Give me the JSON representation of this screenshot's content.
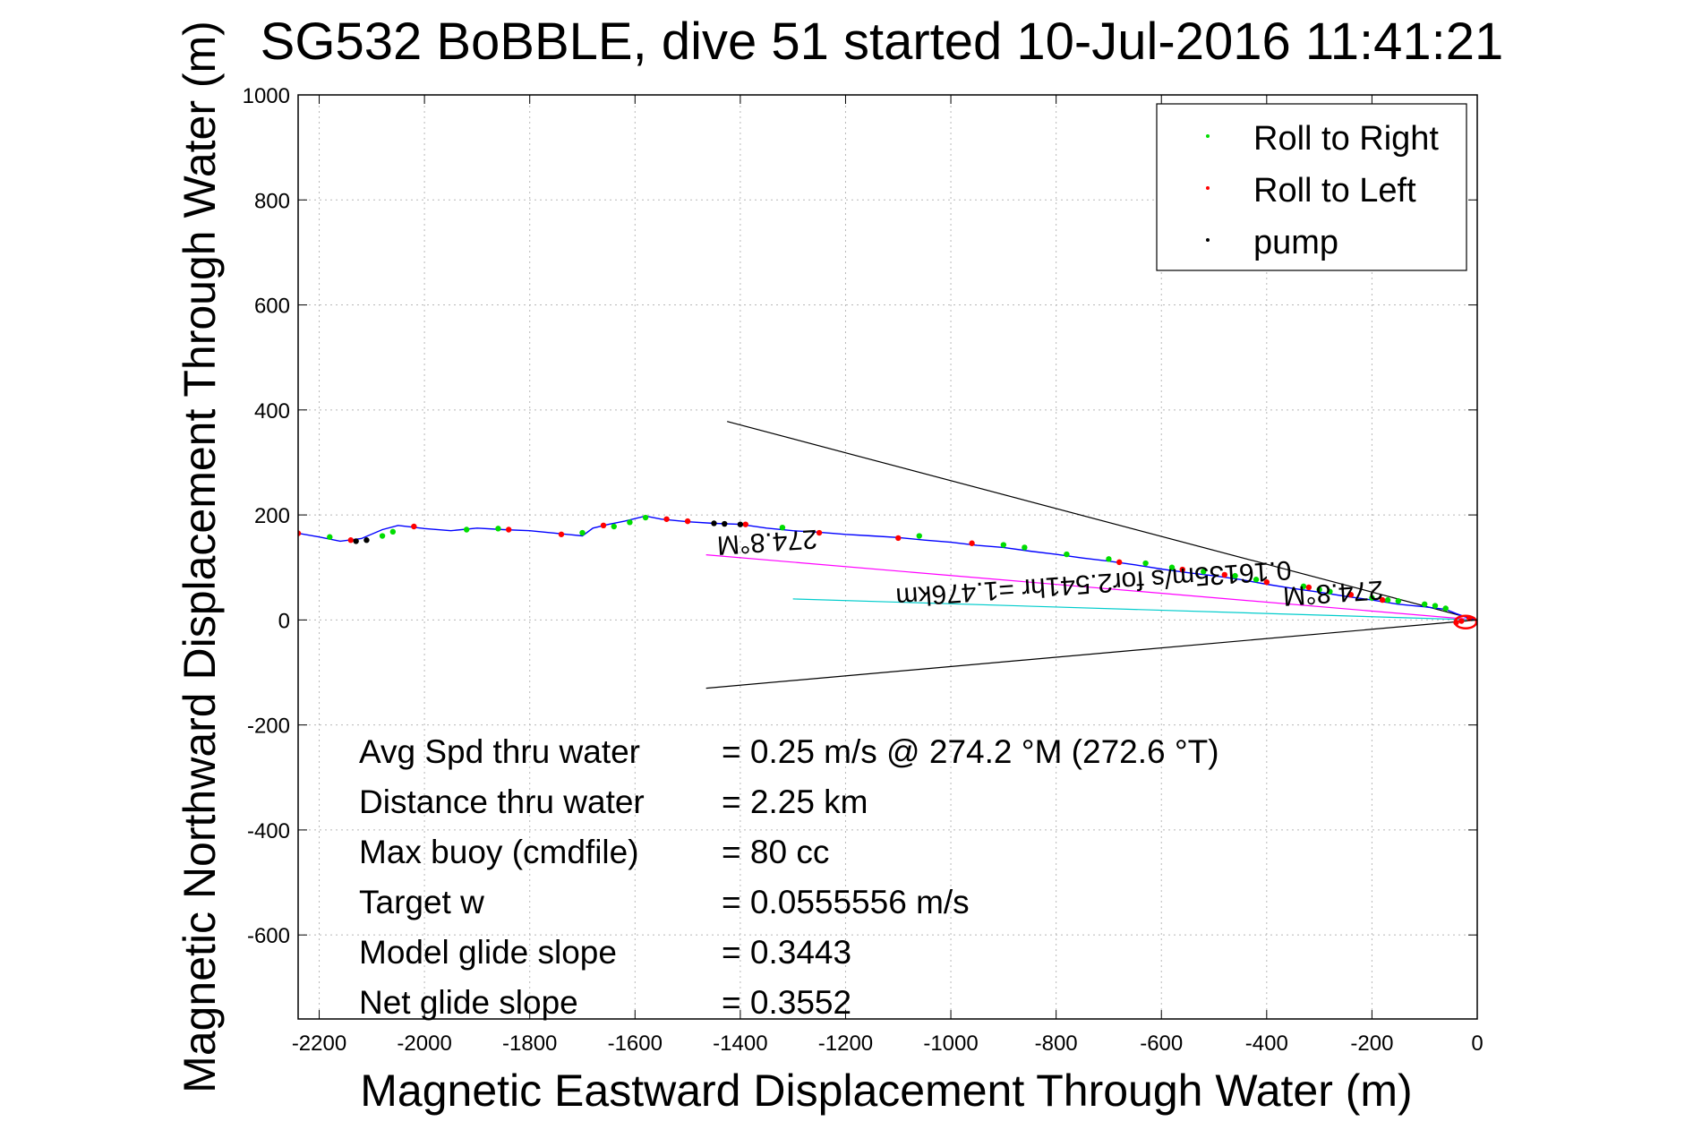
{
  "chart_data": {
    "type": "line",
    "title": "SG532 BoBBLE, dive 51 started 10-Jul-2016 11:41:21",
    "xlabel": "Magnetic Eastward Displacement Through Water (m)",
    "ylabel": "Magnetic Northward Displacement Through Water (m)",
    "xlim": [
      -2240,
      0
    ],
    "ylim": [
      -760,
      1000
    ],
    "xticks": [
      -2200,
      -2000,
      -1800,
      -1600,
      -1400,
      -1200,
      -1000,
      -800,
      -600,
      -400,
      -200,
      0
    ],
    "yticks": [
      -600,
      -400,
      -200,
      0,
      200,
      400,
      600,
      800,
      1000
    ],
    "grid": true,
    "legend_position": "top-right",
    "legend": [
      {
        "label": "Roll to Right",
        "color": "#00dd00"
      },
      {
        "label": "Roll to Left",
        "color": "#ff0000"
      },
      {
        "label": "pump",
        "color": "#000000"
      }
    ],
    "track": {
      "color": "#0000ff",
      "x": [
        -2240,
        -2200,
        -2160,
        -2120,
        -2080,
        -2050,
        -2000,
        -1950,
        -1900,
        -1850,
        -1800,
        -1750,
        -1700,
        -1680,
        -1650,
        -1620,
        -1580,
        -1550,
        -1500,
        -1450,
        -1400,
        -1350,
        -1300,
        -1250,
        -1200,
        -1150,
        -1100,
        -1050,
        -1000,
        -950,
        -900,
        -850,
        -800,
        -750,
        -700,
        -650,
        -600,
        -550,
        -500,
        -450,
        -400,
        -350,
        -300,
        -250,
        -200,
        -150,
        -100,
        -60,
        -40,
        -20,
        0
      ],
      "y": [
        165,
        158,
        150,
        155,
        172,
        180,
        174,
        170,
        175,
        172,
        170,
        165,
        160,
        175,
        182,
        188,
        198,
        192,
        187,
        184,
        182,
        175,
        170,
        167,
        163,
        160,
        157,
        152,
        148,
        142,
        138,
        131,
        125,
        118,
        112,
        105,
        97,
        90,
        84,
        77,
        68,
        60,
        53,
        45,
        38,
        30,
        25,
        20,
        12,
        5,
        0
      ]
    },
    "roll_right": {
      "x": [
        -2180,
        -2080,
        -2060,
        -1920,
        -1860,
        -1700,
        -1640,
        -1610,
        -1580,
        -1320,
        -1060,
        -900,
        -860,
        -780,
        -700,
        -630,
        -580,
        -520,
        -460,
        -420,
        -330,
        -300,
        -280,
        -200,
        -170,
        -150,
        -100,
        -80,
        -60
      ],
      "y": [
        158,
        160,
        168,
        172,
        174,
        166,
        178,
        186,
        195,
        176,
        160,
        143,
        138,
        125,
        116,
        108,
        100,
        92,
        84,
        77,
        64,
        58,
        54,
        42,
        38,
        36,
        30,
        27,
        22
      ]
    },
    "roll_left": {
      "x": [
        -2240,
        -2140,
        -2020,
        -1840,
        -1740,
        -1660,
        -1540,
        -1500,
        -1390,
        -1250,
        -1100,
        -960,
        -680,
        -560,
        -480,
        -400,
        -320,
        -240,
        -180,
        -40,
        -30,
        -15
      ],
      "y": [
        165,
        152,
        178,
        172,
        163,
        180,
        192,
        188,
        182,
        166,
        156,
        146,
        110,
        96,
        86,
        72,
        62,
        48,
        38,
        -5,
        -2,
        3
      ]
    },
    "pump": {
      "x": [
        -2130,
        -2110,
        -1450,
        -1430,
        -1400
      ],
      "y": [
        150,
        152,
        184,
        183,
        182
      ]
    },
    "lines": [
      {
        "color": "#000000",
        "x": [
          -1425,
          0
        ],
        "y": [
          378,
          0
        ]
      },
      {
        "color": "#000000",
        "x": [
          -1465,
          0
        ],
        "y": [
          -130,
          0
        ]
      },
      {
        "color": "#ff00ff",
        "x": [
          -1465,
          0
        ],
        "y": [
          124,
          0
        ]
      },
      {
        "color": "#00cccc",
        "x": [
          -1300,
          0
        ],
        "y": [
          40,
          0
        ]
      }
    ],
    "annotations": [
      {
        "text": "274.8°M",
        "x": -1350,
        "y": 165,
        "rotation": 176,
        "size": 30
      },
      {
        "text": "274.8°M",
        "x": -275,
        "y": 68,
        "rotation": 176,
        "size": 30
      },
      {
        "text": "0.16135m/s for2.541hr =1.476km",
        "x": -730,
        "y": 86,
        "rotation": 176,
        "size": 30
      }
    ],
    "stats": [
      {
        "label": "Avg Spd thru water",
        "value": "=  0.25 m/s @ 274.2  °M (272.6 °T)"
      },
      {
        "label": "Distance thru water",
        "value": "=  2.25 km"
      },
      {
        "label": "Max buoy (cmdfile)",
        "value": "= 80 cc"
      },
      {
        "label": "Target w",
        "value": "= 0.0555556 m/s"
      },
      {
        "label": "Model glide slope",
        "value": "= 0.3443"
      },
      {
        "label": "Net glide slope",
        "value": "= 0.3552"
      }
    ]
  }
}
